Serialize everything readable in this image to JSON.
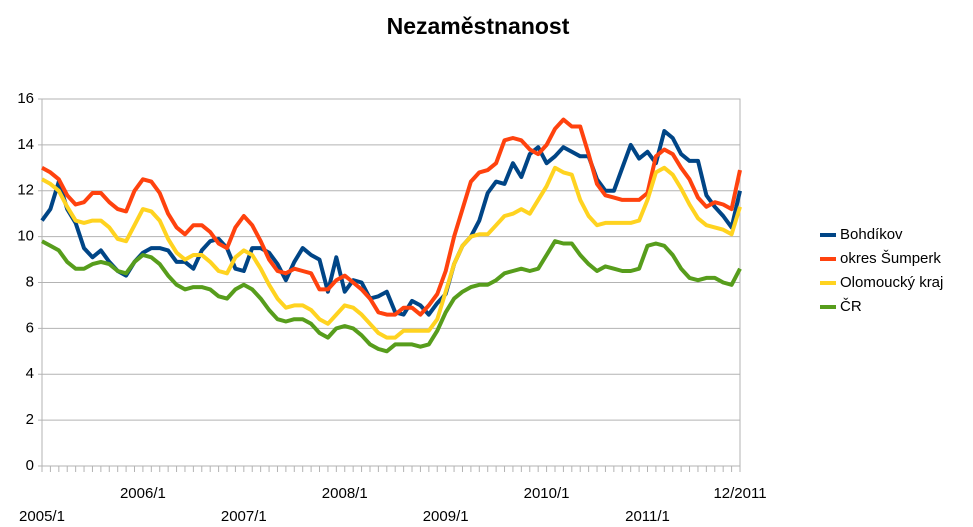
{
  "chart_data": {
    "type": "line",
    "title": "Nezaměstnanost",
    "categories": [
      "2005/1",
      null,
      null,
      null,
      null,
      null,
      null,
      null,
      null,
      null,
      null,
      null,
      "2006/1",
      null,
      null,
      null,
      null,
      null,
      null,
      null,
      null,
      null,
      null,
      null,
      "2007/1",
      null,
      null,
      null,
      null,
      null,
      null,
      null,
      null,
      null,
      null,
      null,
      "2008/1",
      null,
      null,
      null,
      null,
      null,
      null,
      null,
      null,
      null,
      null,
      null,
      "2009/1",
      null,
      null,
      null,
      null,
      null,
      null,
      null,
      null,
      null,
      null,
      null,
      "2010/1",
      null,
      null,
      null,
      null,
      null,
      null,
      null,
      null,
      null,
      null,
      null,
      "2011/1",
      null,
      null,
      null,
      null,
      null,
      null,
      null,
      null,
      null,
      null,
      "12/2011"
    ],
    "series": [
      {
        "name": "Bohdíkov",
        "color": "#004586",
        "values": [
          10.7,
          11.2,
          12.4,
          11.2,
          10.6,
          9.5,
          9.1,
          9.4,
          8.9,
          8.5,
          8.3,
          8.9,
          9.3,
          9.5,
          9.5,
          9.4,
          8.9,
          8.9,
          8.6,
          9.4,
          9.8,
          9.9,
          9.5,
          8.6,
          8.5,
          9.5,
          9.5,
          9.3,
          8.8,
          8.1,
          8.9,
          9.5,
          9.2,
          9.0,
          7.6,
          9.1,
          7.6,
          8.1,
          8.0,
          7.3,
          7.4,
          7.6,
          6.7,
          6.6,
          7.2,
          7.0,
          6.6,
          7.1,
          7.5,
          8.8,
          9.6,
          10.0,
          10.7,
          11.9,
          12.4,
          12.3,
          13.2,
          12.6,
          13.6,
          13.9,
          13.2,
          13.5,
          13.9,
          13.7,
          13.5,
          13.5,
          12.5,
          12.0,
          12.0,
          13.0,
          14.0,
          13.4,
          13.7,
          13.2,
          14.6,
          14.3,
          13.6,
          13.3,
          13.3,
          11.8,
          11.3,
          10.9,
          10.4,
          12.0
        ]
      },
      {
        "name": "okres Šumperk",
        "color": "#ff420e",
        "values": [
          13.0,
          12.8,
          12.5,
          11.8,
          11.4,
          11.5,
          11.9,
          11.9,
          11.5,
          11.2,
          11.1,
          12.0,
          12.5,
          12.4,
          11.9,
          11.0,
          10.4,
          10.1,
          10.5,
          10.5,
          10.2,
          9.7,
          9.5,
          10.4,
          10.9,
          10.5,
          9.8,
          9.0,
          8.5,
          8.4,
          8.6,
          8.5,
          8.4,
          7.7,
          7.7,
          8.1,
          8.3,
          8.0,
          7.7,
          7.3,
          6.7,
          6.6,
          6.6,
          6.9,
          6.9,
          6.6,
          7.0,
          7.5,
          8.5,
          10.0,
          11.2,
          12.4,
          12.8,
          12.9,
          13.2,
          14.2,
          14.3,
          14.2,
          13.8,
          13.6,
          14.0,
          14.7,
          15.1,
          14.8,
          14.8,
          13.6,
          12.3,
          11.8,
          11.7,
          11.6,
          11.6,
          11.6,
          11.9,
          13.5,
          13.8,
          13.6,
          13.0,
          12.5,
          11.7,
          11.3,
          11.5,
          11.4,
          11.2,
          12.9
        ]
      },
      {
        "name": "Olomoucký kraj",
        "color": "#ffd320",
        "values": [
          12.5,
          12.3,
          12.0,
          11.3,
          10.7,
          10.6,
          10.7,
          10.7,
          10.4,
          9.9,
          9.8,
          10.5,
          11.2,
          11.1,
          10.7,
          9.9,
          9.3,
          9.0,
          9.2,
          9.2,
          8.9,
          8.5,
          8.4,
          9.1,
          9.4,
          9.2,
          8.6,
          7.9,
          7.3,
          6.9,
          7.0,
          7.0,
          6.8,
          6.4,
          6.2,
          6.6,
          7.0,
          6.9,
          6.6,
          6.2,
          5.8,
          5.6,
          5.6,
          5.9,
          5.9,
          5.9,
          5.9,
          6.4,
          7.6,
          8.8,
          9.6,
          10.0,
          10.1,
          10.1,
          10.5,
          10.9,
          11.0,
          11.2,
          11.0,
          11.6,
          12.2,
          13.0,
          12.8,
          12.7,
          11.6,
          10.9,
          10.5,
          10.6,
          10.6,
          10.6,
          10.6,
          10.7,
          11.6,
          12.8,
          13.0,
          12.7,
          12.1,
          11.4,
          10.8,
          10.5,
          10.4,
          10.3,
          10.1,
          11.3
        ]
      },
      {
        "name": "ČR",
        "color": "#579d1c",
        "values": [
          9.8,
          9.6,
          9.4,
          8.9,
          8.6,
          8.6,
          8.8,
          8.9,
          8.8,
          8.5,
          8.4,
          8.9,
          9.2,
          9.1,
          8.8,
          8.3,
          7.9,
          7.7,
          7.8,
          7.8,
          7.7,
          7.4,
          7.3,
          7.7,
          7.9,
          7.7,
          7.3,
          6.8,
          6.4,
          6.3,
          6.4,
          6.4,
          6.2,
          5.8,
          5.6,
          6.0,
          6.1,
          6.0,
          5.7,
          5.3,
          5.1,
          5.0,
          5.3,
          5.3,
          5.3,
          5.2,
          5.3,
          5.9,
          6.7,
          7.3,
          7.6,
          7.8,
          7.9,
          7.9,
          8.1,
          8.4,
          8.5,
          8.6,
          8.5,
          8.6,
          9.2,
          9.8,
          9.7,
          9.7,
          9.2,
          8.8,
          8.5,
          8.7,
          8.6,
          8.5,
          8.5,
          8.6,
          9.6,
          9.7,
          9.6,
          9.2,
          8.6,
          8.2,
          8.1,
          8.2,
          8.2,
          8.0,
          7.9,
          8.6
        ]
      }
    ],
    "ylim": [
      0,
      16
    ],
    "yticks": [
      0,
      2,
      4,
      6,
      8,
      10,
      12,
      14,
      16
    ],
    "grid": true,
    "legend": "right"
  }
}
